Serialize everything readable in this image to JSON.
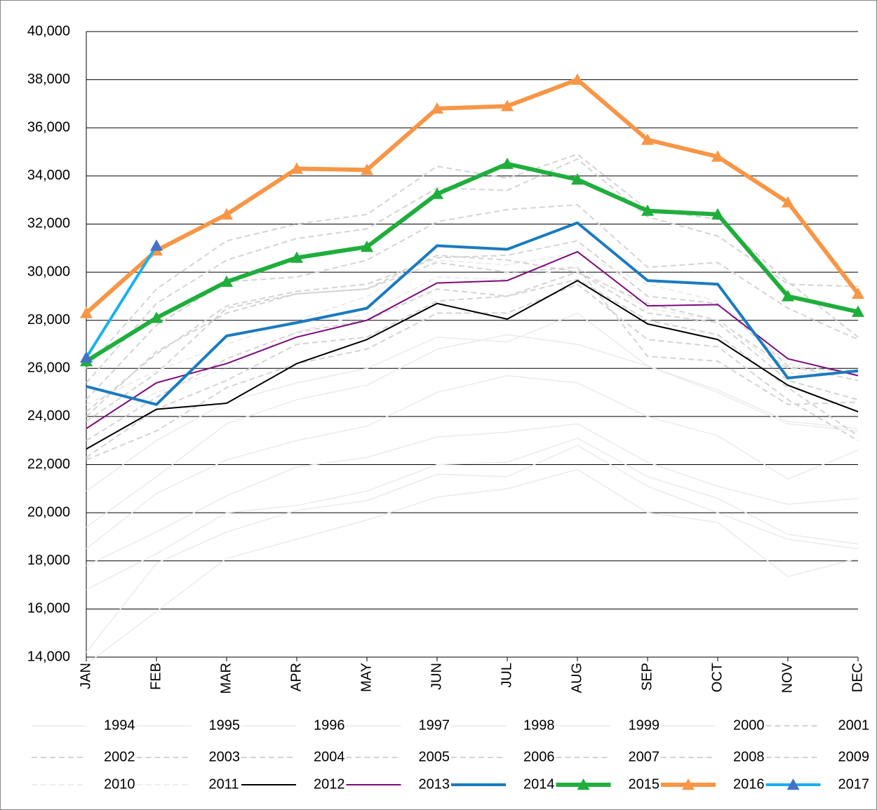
{
  "chart_data": {
    "type": "line",
    "categories": [
      "JAN",
      "FEB",
      "MAR",
      "APR",
      "MAY",
      "JUN",
      "JUL",
      "AUG",
      "SEP",
      "OCT",
      "NOV",
      "DEC"
    ],
    "ylim": [
      14000,
      40000
    ],
    "yticks": [
      {
        "value": 14000,
        "label": "14,000"
      },
      {
        "value": 16000,
        "label": "16,000"
      },
      {
        "value": 18000,
        "label": "18,000"
      },
      {
        "value": 20000,
        "label": "20,000"
      },
      {
        "value": 22000,
        "label": "22,000"
      },
      {
        "value": 24000,
        "label": "24,000"
      },
      {
        "value": 26000,
        "label": "26,000"
      },
      {
        "value": 28000,
        "label": "28,000"
      },
      {
        "value": 30000,
        "label": "30,000"
      },
      {
        "value": 32000,
        "label": "32,000"
      },
      {
        "value": 34000,
        "label": "34,000"
      },
      {
        "value": 36000,
        "label": "36,000"
      },
      {
        "value": 38000,
        "label": "38,000"
      },
      {
        "value": 40000,
        "label": "40,000"
      }
    ],
    "grid": true,
    "legend": "bottom",
    "series": [
      {
        "name": "1994",
        "color": "#ebebeb",
        "linewidth": 1.5,
        "dash": false,
        "values": [
          13700,
          15900,
          18100,
          18900,
          19700,
          20650,
          21000,
          21800,
          20000,
          19600,
          17350,
          18100
        ]
      },
      {
        "name": "1995",
        "color": "#ebebeb",
        "linewidth": 1.5,
        "dash": false,
        "values": [
          14200,
          17900,
          19200,
          20100,
          20500,
          21600,
          21500,
          22800,
          21100,
          20000,
          18900,
          18500
        ]
      },
      {
        "name": "1996",
        "color": "#ebebeb",
        "linewidth": 1.5,
        "dash": false,
        "values": [
          16800,
          18300,
          20000,
          20300,
          20900,
          22000,
          22100,
          23100,
          21500,
          20600,
          19100,
          18700
        ]
      },
      {
        "name": "1997",
        "color": "#ebebeb",
        "linewidth": 1.5,
        "dash": false,
        "values": [
          17800,
          19200,
          20700,
          21900,
          22300,
          23150,
          23350,
          23700,
          22100,
          21100,
          20350,
          20600
        ]
      },
      {
        "name": "1998",
        "color": "#ebebeb",
        "linewidth": 1.5,
        "dash": false,
        "values": [
          18500,
          20800,
          22200,
          23000,
          23600,
          25000,
          25700,
          25400,
          24000,
          23200,
          21400,
          22600
        ]
      },
      {
        "name": "1999",
        "color": "#ebebeb",
        "linewidth": 1.5,
        "dash": false,
        "values": [
          19400,
          21500,
          23700,
          24700,
          25300,
          26800,
          27400,
          27000,
          26100,
          25000,
          23700,
          23400
        ]
      },
      {
        "name": "2000",
        "color": "#ebebeb",
        "linewidth": 1.5,
        "dash": false,
        "values": [
          20900,
          23000,
          24600,
          25400,
          26000,
          27300,
          27100,
          28300,
          26100,
          25100,
          23800,
          23500
        ]
      },
      {
        "name": "2001",
        "color": "#d3d3d3",
        "linewidth": 2,
        "dash": true,
        "values": [
          22200,
          23400,
          25200,
          26200,
          26800,
          28300,
          28300,
          29500,
          27200,
          26900,
          24700,
          23000
        ]
      },
      {
        "name": "2002",
        "color": "#d3d3d3",
        "linewidth": 2,
        "dash": true,
        "values": [
          22300,
          24300,
          25500,
          27000,
          27300,
          28800,
          29000,
          29700,
          28000,
          27400,
          25200,
          23200
        ]
      },
      {
        "name": "2003",
        "color": "#d3d3d3",
        "linewidth": 2,
        "dash": true,
        "values": [
          23000,
          24800,
          26400,
          27500,
          28000,
          29300,
          29000,
          30000,
          28300,
          27900,
          25500,
          24700
        ]
      },
      {
        "name": "2004",
        "color": "#d3d3d3",
        "linewidth": 2,
        "dash": true,
        "values": [
          23800,
          25800,
          28500,
          29100,
          29300,
          30400,
          30000,
          30200,
          26500,
          26300,
          24500,
          24600
        ]
      },
      {
        "name": "2005",
        "color": "#d3d3d3",
        "linewidth": 2,
        "dash": true,
        "values": [
          24200,
          26600,
          28600,
          29200,
          29500,
          30600,
          30700,
          31300,
          29000,
          28700,
          26100,
          25500
        ]
      },
      {
        "name": "2006",
        "color": "#d3d3d3",
        "linewidth": 2,
        "dash": true,
        "values": [
          24700,
          27800,
          29600,
          29800,
          30500,
          32100,
          32600,
          32800,
          30200,
          30400,
          28500,
          27200
        ]
      },
      {
        "name": "2007",
        "color": "#d3d3d3",
        "linewidth": 2,
        "dash": true,
        "values": [
          25400,
          28700,
          30500,
          31400,
          31800,
          33500,
          33400,
          34700,
          32300,
          31500,
          29500,
          29400
        ]
      },
      {
        "name": "2008",
        "color": "#d3d3d3",
        "linewidth": 2,
        "dash": true,
        "values": [
          26000,
          29300,
          31300,
          32000,
          32400,
          34400,
          33900,
          34900,
          32600,
          32200,
          29600,
          27300
        ]
      },
      {
        "name": "2009",
        "color": "#d3d3d3",
        "linewidth": 2,
        "dash": true,
        "values": [
          24000,
          26700,
          28300,
          29100,
          29300,
          30700,
          30500,
          30000,
          28700,
          28000,
          26000,
          25900
        ]
      },
      {
        "name": "2010",
        "color": "#e8e8e8",
        "linewidth": 1.5,
        "dash": true,
        "values": [
          24500,
          25900,
          27000,
          28000,
          29000,
          30500,
          30300,
          30800,
          29500,
          28800,
          26200,
          25700
        ]
      },
      {
        "name": "2011",
        "color": "#e8e8e8",
        "linewidth": 1.5,
        "dash": true,
        "values": [
          23500,
          25000,
          26000,
          27500,
          28300,
          29800,
          29700,
          30200,
          28500,
          28000,
          25800,
          25800
        ]
      },
      {
        "name": "2012",
        "color": "#000000",
        "linewidth": 2,
        "dash": false,
        "values": [
          22650,
          24300,
          24550,
          26200,
          27200,
          28700,
          28050,
          29650,
          27850,
          27200,
          25300,
          24200
        ]
      },
      {
        "name": "2013",
        "color": "#7b0a7b",
        "linewidth": 2,
        "dash": false,
        "values": [
          23500,
          25400,
          26200,
          27300,
          28000,
          29550,
          29650,
          30850,
          28600,
          28650,
          26400,
          25700
        ]
      },
      {
        "name": "2014",
        "color": "#1a7bbf",
        "linewidth": 4,
        "dash": false,
        "values": [
          25250,
          24500,
          27350,
          27900,
          28500,
          31100,
          30950,
          32050,
          29650,
          29500,
          25600,
          25900
        ]
      },
      {
        "name": "2015",
        "color": "#1fae3c",
        "linewidth": 6,
        "dash": false,
        "marker": "triangle",
        "values": [
          26300,
          28100,
          29600,
          30600,
          31050,
          33250,
          34500,
          33850,
          32550,
          32400,
          29000,
          28350
        ]
      },
      {
        "name": "2016",
        "color": "#f79646",
        "linewidth": 6,
        "dash": false,
        "marker": "triangle",
        "values": [
          28300,
          30900,
          32400,
          34300,
          34250,
          36800,
          36900,
          38000,
          35500,
          34800,
          32900,
          29100
        ]
      },
      {
        "name": "2017",
        "color": "#1ab0ef",
        "linewidth": 4,
        "dash": false,
        "marker": "triangle",
        "marker_color": "#4472c4",
        "values": [
          26450,
          31100,
          null,
          null,
          null,
          null,
          null,
          null,
          null,
          null,
          null,
          null
        ]
      }
    ]
  }
}
